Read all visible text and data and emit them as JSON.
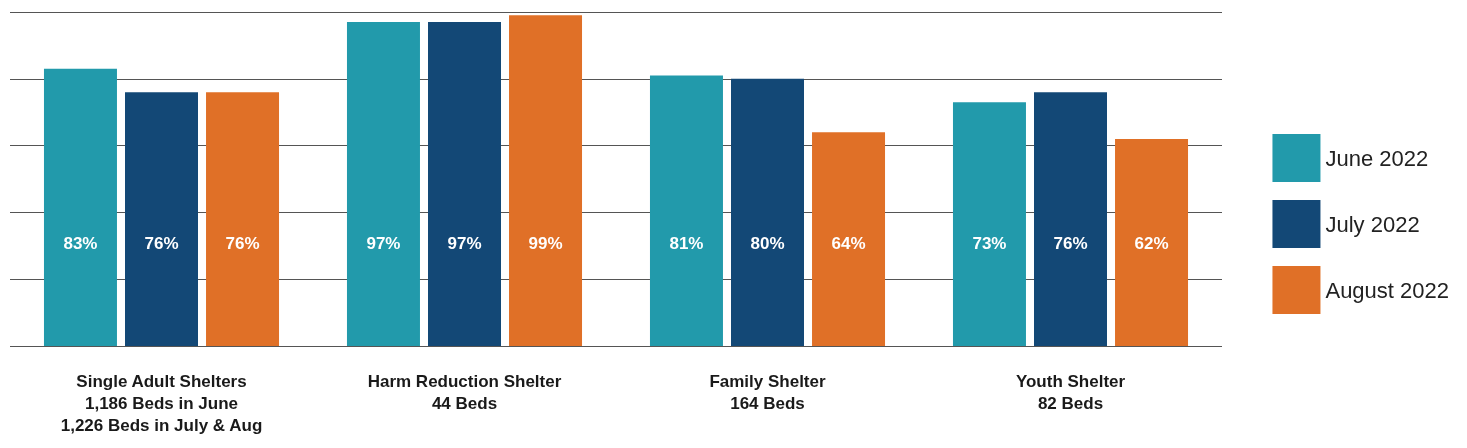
{
  "chart_data": {
    "type": "bar",
    "categories": [
      "Single Adult Shelters\n1,186 Beds in June\n1,226 Beds in July & Aug",
      "Harm Reduction Shelter\n44 Beds",
      "Family Shelter\n164 Beds",
      "Youth Shelter\n82 Beds"
    ],
    "series": [
      {
        "name": "June 2022",
        "color": "#229aab",
        "values": [
          83,
          97,
          81,
          73
        ],
        "value_labels": [
          "83%",
          "97%",
          "81%",
          "73%"
        ]
      },
      {
        "name": "July 2022",
        "color": "#134876",
        "values": [
          76,
          97,
          80,
          76
        ],
        "value_labels": [
          "76%",
          "97%",
          "80%",
          "76%"
        ]
      },
      {
        "name": "August 2022",
        "color": "#e07027",
        "values": [
          76,
          99,
          64,
          62
        ],
        "value_labels": [
          "76%",
          "99%",
          "64%",
          "62%"
        ]
      }
    ],
    "ylim": [
      0,
      100
    ],
    "yticks": [
      {
        "value": 0,
        "label": null
      },
      {
        "value": 20,
        "label": null
      },
      {
        "value": 40,
        "label": null
      },
      {
        "value": 60,
        "label": null
      },
      {
        "value": 80,
        "label": null
      },
      {
        "value": 100,
        "label": null
      }
    ],
    "grid": "y",
    "tick_labels": "x",
    "legend": "right"
  }
}
